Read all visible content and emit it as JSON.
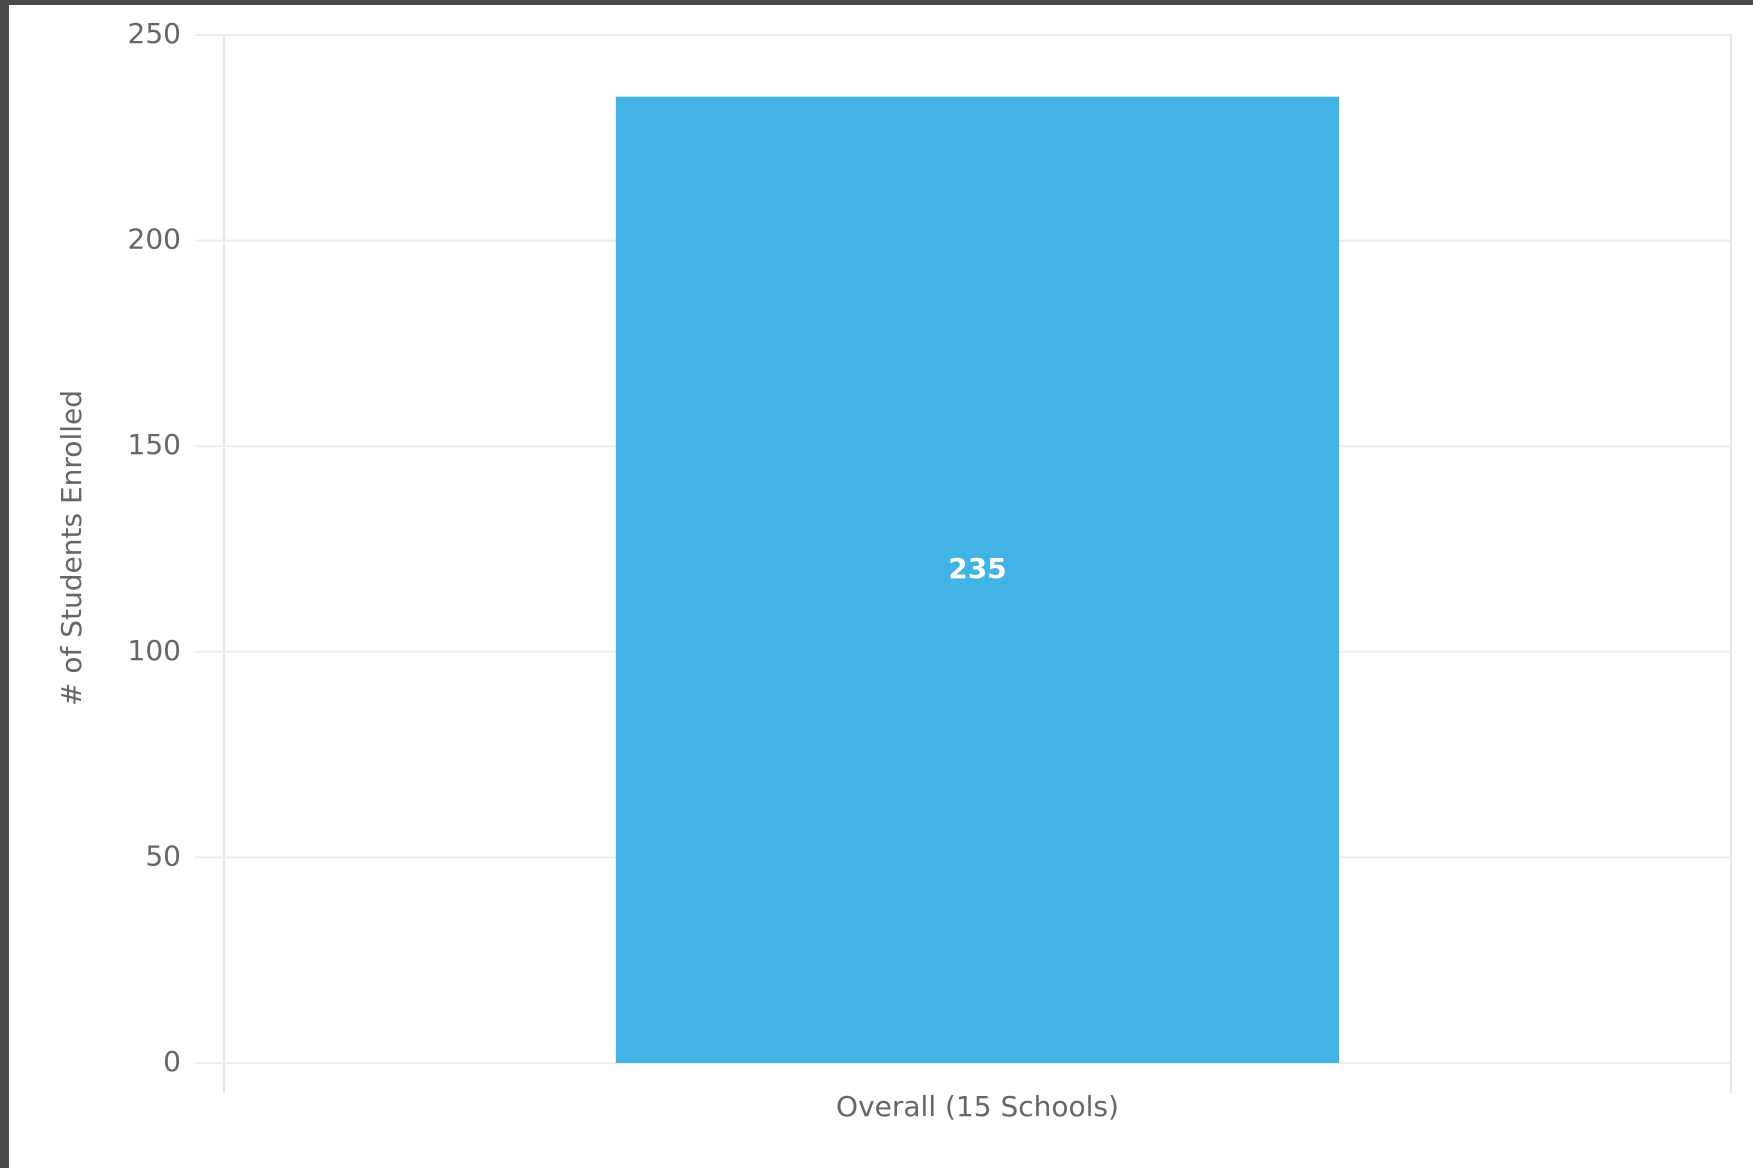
{
  "chart_data": {
    "type": "bar",
    "y_label": "# of Students Enrolled",
    "categories": [
      "Overall (15 Schools)"
    ],
    "values": [
      235
    ],
    "color": "#41b3e4",
    "ylim": [
      0,
      250
    ],
    "yticks": [
      0,
      50,
      100,
      150,
      200,
      250
    ],
    "grid": true
  }
}
